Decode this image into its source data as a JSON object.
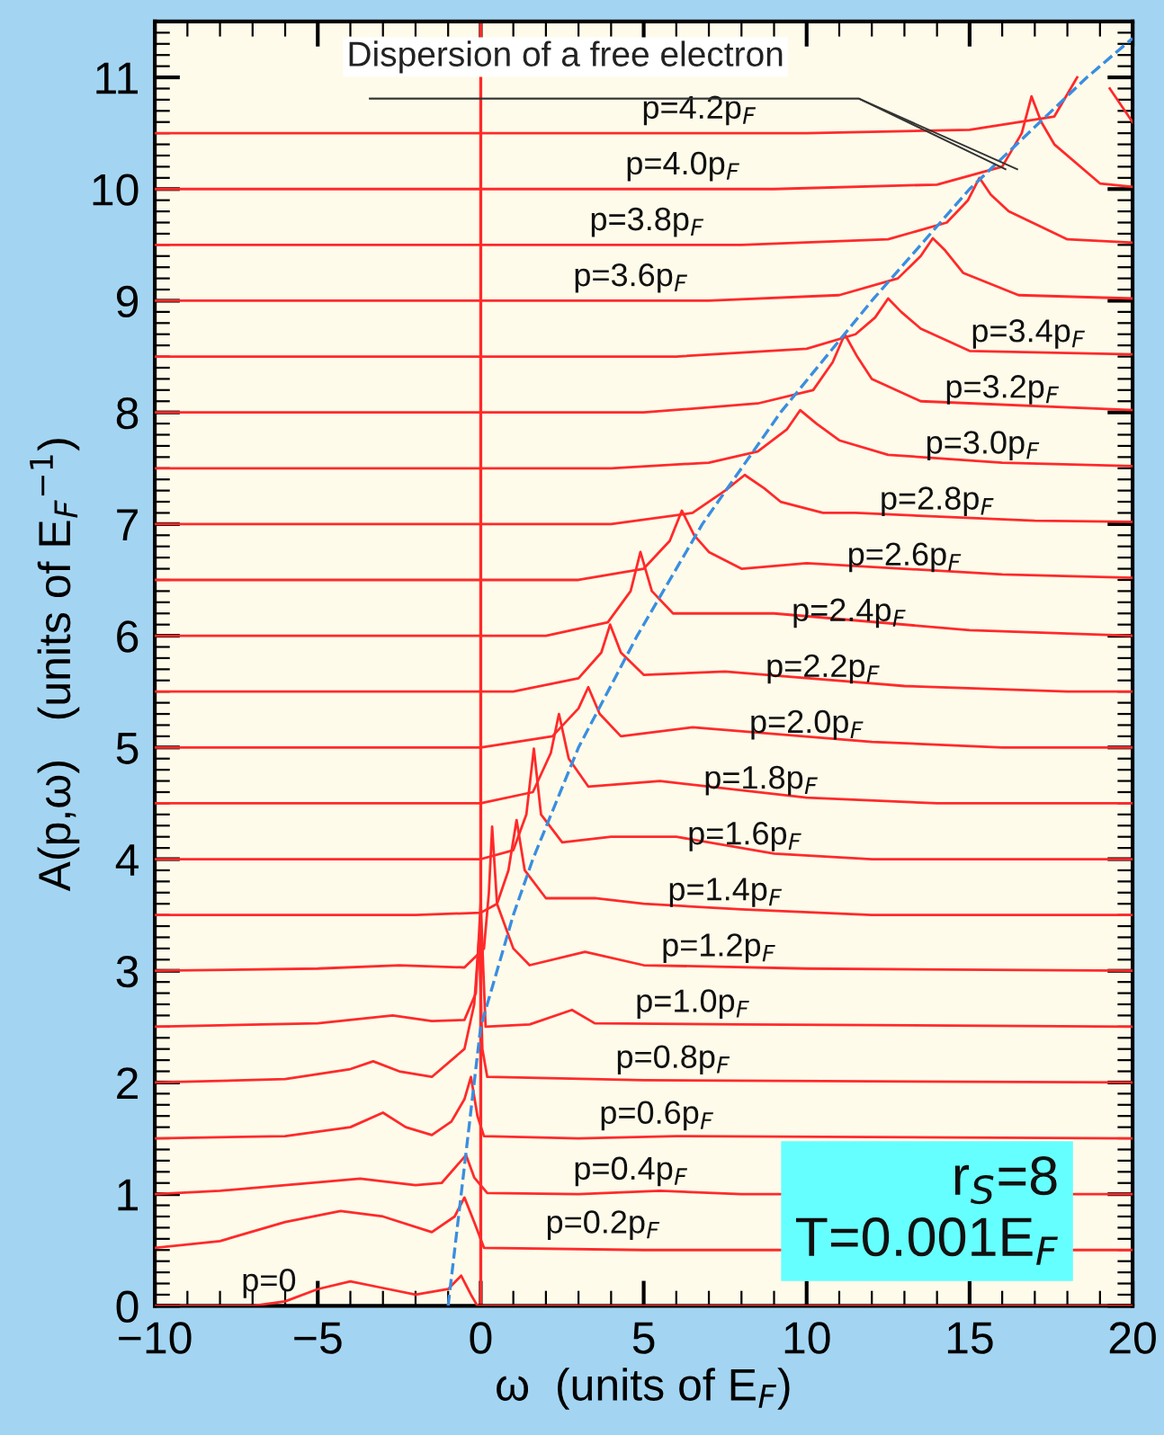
{
  "chart_data": {
    "type": "line",
    "xlabel": "ω  (units of E$_{F}$)",
    "ylabel": "A(p,ω)   (units of E$_{F}$$^{−1}$)",
    "xlim": [
      -10,
      20
    ],
    "ylim": [
      0,
      11.5
    ],
    "xticks": [
      -10,
      -5,
      0,
      5,
      10,
      15,
      20
    ],
    "yticks": [
      0,
      1,
      2,
      3,
      4,
      5,
      6,
      7,
      8,
      9,
      10,
      11
    ],
    "grid": false,
    "legend": false,
    "marker": "none",
    "line_style": "solid",
    "ref_lines": [
      {
        "axis": "x",
        "value": 0,
        "color": "#ff2a2a"
      }
    ],
    "annotations": [
      "Dispersion of a free electron",
      "r$_{S}$=8\nT=0.001E$_{F}$"
    ],
    "series": [
      {
        "name": "p=0",
        "color": "#ff2a2a",
        "x": [
          -10,
          -7,
          -6,
          -5,
          -4,
          -3,
          -2,
          -1,
          -0.6,
          -0.3,
          -0.1,
          20
        ],
        "values": [
          0,
          0,
          0.04,
          0.15,
          0.22,
          0.16,
          0.1,
          0.15,
          0.27,
          0.1,
          0,
          0
        ]
      },
      {
        "name": "p=0.2p$_{F}$",
        "color": "#ff2a2a",
        "x": [
          -10,
          -8,
          -6,
          -4.3,
          -3,
          -1.5,
          -0.8,
          -0.5,
          -0.2,
          0.1,
          5,
          20
        ],
        "values": [
          0.52,
          0.58,
          0.75,
          0.85,
          0.8,
          0.66,
          0.8,
          0.97,
          0.75,
          0.52,
          0.5,
          0.5
        ]
      },
      {
        "name": "p=0.4p$_{F}$",
        "color": "#ff2a2a",
        "x": [
          -10,
          -8,
          -6,
          -3.7,
          -2,
          -1.2,
          -0.6,
          -0.45,
          -0.2,
          0.2,
          3,
          5.5,
          8,
          20
        ],
        "values": [
          1.0,
          1.03,
          1.08,
          1.14,
          1.08,
          1.1,
          1.3,
          1.35,
          1.15,
          1.01,
          1.0,
          1.03,
          1.0,
          1.0
        ]
      },
      {
        "name": "p=0.6p$_{F}$",
        "color": "#ff2a2a",
        "x": [
          -10,
          -6,
          -4,
          -3,
          -2.3,
          -1.5,
          -0.9,
          -0.5,
          -0.3,
          -0.1,
          0.1,
          3,
          6,
          20
        ],
        "values": [
          1.5,
          1.52,
          1.6,
          1.73,
          1.6,
          1.53,
          1.65,
          1.85,
          2.05,
          1.7,
          1.52,
          1.5,
          1.52,
          1.5
        ]
      },
      {
        "name": "p=0.8p$_{F}$",
        "color": "#ff2a2a",
        "x": [
          -10,
          -6,
          -4,
          -3.3,
          -2.5,
          -1.5,
          -0.5,
          -0.2,
          -0.05,
          0.05,
          0.2,
          5,
          20
        ],
        "values": [
          2.0,
          2.03,
          2.12,
          2.19,
          2.1,
          2.05,
          2.3,
          2.7,
          3.3,
          2.3,
          2.05,
          2.02,
          2.0
        ]
      },
      {
        "name": "p=1.0p$_{F}$",
        "color": "#ff2a2a",
        "x": [
          -10,
          -5,
          -2.7,
          -1.5,
          -0.5,
          -0.15,
          0.0,
          0.08,
          0.15,
          1.5,
          2.8,
          3.5,
          8,
          20
        ],
        "values": [
          2.5,
          2.53,
          2.6,
          2.55,
          2.56,
          2.8,
          3.62,
          3.0,
          2.5,
          2.52,
          2.65,
          2.53,
          2.52,
          2.5
        ]
      },
      {
        "name": "p=1.2p$_{F}$",
        "color": "#ff2a2a",
        "x": [
          -10,
          -5,
          -2.5,
          -0.5,
          0.1,
          0.25,
          0.35,
          0.5,
          1.0,
          1.5,
          3.2,
          5,
          10,
          20
        ],
        "values": [
          3.0,
          3.02,
          3.05,
          3.03,
          3.2,
          3.7,
          4.29,
          3.6,
          3.2,
          3.05,
          3.17,
          3.05,
          3.02,
          3.0
        ]
      },
      {
        "name": "p=1.4p$_{F}$",
        "color": "#ff2a2a",
        "x": [
          -10,
          -2,
          0,
          0.5,
          0.85,
          1.1,
          1.35,
          2.0,
          3.5,
          5,
          8,
          12,
          20
        ],
        "values": [
          3.5,
          3.5,
          3.52,
          3.6,
          3.9,
          4.35,
          3.9,
          3.65,
          3.65,
          3.6,
          3.55,
          3.5,
          3.5
        ]
      },
      {
        "name": "p=1.6p$_{F}$",
        "color": "#ff2a2a",
        "x": [
          -10,
          0,
          1.0,
          1.4,
          1.63,
          1.85,
          2.5,
          4,
          6,
          9,
          12,
          20
        ],
        "values": [
          4.0,
          4.0,
          4.08,
          4.4,
          4.99,
          4.4,
          4.15,
          4.2,
          4.2,
          4.05,
          4.0,
          4.0
        ]
      },
      {
        "name": "p=1.8p$_{F}$",
        "color": "#ff2a2a",
        "x": [
          -10,
          0,
          1.6,
          2.15,
          2.4,
          2.7,
          3.3,
          5.5,
          10,
          14,
          20
        ],
        "values": [
          4.5,
          4.5,
          4.6,
          4.95,
          5.3,
          4.9,
          4.65,
          4.7,
          4.55,
          4.5,
          4.5
        ]
      },
      {
        "name": "p=2.0p$_{F}$",
        "color": "#ff2a2a",
        "x": [
          -10,
          0,
          2.2,
          3.0,
          3.3,
          3.65,
          4.3,
          6.5,
          12,
          16,
          20
        ],
        "values": [
          5.0,
          5.0,
          5.1,
          5.35,
          5.54,
          5.3,
          5.1,
          5.18,
          5.05,
          5.0,
          5.0
        ]
      },
      {
        "name": "p=2.2p$_{F}$",
        "color": "#ff2a2a",
        "x": [
          -10,
          1,
          3.0,
          3.7,
          3.97,
          4.3,
          5.0,
          7.5,
          13,
          18,
          20
        ],
        "values": [
          5.5,
          5.5,
          5.62,
          5.85,
          6.1,
          5.85,
          5.65,
          5.68,
          5.55,
          5.5,
          5.5
        ]
      },
      {
        "name": "p=2.4p$_{F}$",
        "color": "#ff2a2a",
        "x": [
          -10,
          2,
          3.9,
          4.6,
          4.9,
          5.25,
          5.9,
          9,
          15,
          20
        ],
        "values": [
          6.0,
          6.0,
          6.12,
          6.4,
          6.75,
          6.4,
          6.2,
          6.2,
          6.05,
          6.0
        ]
      },
      {
        "name": "p=2.6p$_{F}$",
        "color": "#ff2a2a",
        "x": [
          -10,
          3,
          5.0,
          5.8,
          6.17,
          6.55,
          7.0,
          8,
          10,
          16,
          20
        ],
        "values": [
          6.5,
          6.5,
          6.6,
          6.85,
          7.12,
          6.9,
          6.75,
          6.6,
          6.65,
          6.55,
          6.52
        ]
      },
      {
        "name": "p=2.8p$_{F}$",
        "color": "#ff2a2a",
        "x": [
          -10,
          4,
          6.5,
          7.5,
          8.1,
          8.7,
          9.2,
          10.5,
          11.5,
          17,
          20
        ],
        "values": [
          7.0,
          7.0,
          7.1,
          7.3,
          7.44,
          7.32,
          7.2,
          7.1,
          7.1,
          7.03,
          7.02
        ]
      },
      {
        "name": "p=3.0p$_{F}$",
        "color": "#ff2a2a",
        "x": [
          -10,
          4,
          7,
          8.5,
          9.4,
          9.8,
          10.3,
          11,
          12.5,
          16,
          20
        ],
        "values": [
          7.5,
          7.5,
          7.55,
          7.65,
          7.85,
          8.02,
          7.9,
          7.75,
          7.62,
          7.55,
          7.52
        ]
      },
      {
        "name": "p=3.2p$_{F}$",
        "color": "#ff2a2a",
        "x": [
          -10,
          5,
          8.5,
          10.2,
          10.8,
          11.17,
          11.55,
          12,
          13.5,
          20
        ],
        "values": [
          8.0,
          8.0,
          8.08,
          8.2,
          8.45,
          8.7,
          8.5,
          8.3,
          8.1,
          8.02
        ]
      },
      {
        "name": "p=3.4p$_{F}$",
        "color": "#ff2a2a",
        "x": [
          -10,
          6,
          10,
          11.5,
          12.1,
          12.5,
          12.9,
          13.5,
          15,
          20
        ],
        "values": [
          8.5,
          8.5,
          8.57,
          8.7,
          8.85,
          9.02,
          8.9,
          8.75,
          8.55,
          8.52
        ]
      },
      {
        "name": "p=3.6p$_{F}$",
        "color": "#ff2a2a",
        "x": [
          -10,
          7,
          11,
          12.8,
          13.5,
          13.87,
          14.25,
          14.8,
          16.5,
          20
        ],
        "values": [
          9.0,
          9.0,
          9.05,
          9.2,
          9.4,
          9.56,
          9.45,
          9.25,
          9.05,
          9.02
        ]
      },
      {
        "name": "p=3.8p$_{F}$",
        "color": "#ff2a2a",
        "x": [
          -10,
          8,
          12.5,
          14.3,
          14.95,
          15.3,
          15.65,
          16.2,
          18,
          20
        ],
        "values": [
          9.5,
          9.5,
          9.55,
          9.7,
          9.9,
          10.1,
          9.95,
          9.8,
          9.55,
          9.52
        ]
      },
      {
        "name": "p=4.0p$_{F}$",
        "color": "#ff2a2a",
        "x": [
          -10,
          9,
          14,
          16,
          16.6,
          16.9,
          17.2,
          17.6,
          19,
          20
        ],
        "values": [
          10.0,
          10.0,
          10.04,
          10.2,
          10.5,
          10.83,
          10.6,
          10.4,
          10.05,
          10.02
        ]
      },
      {
        "name": "p=4.2p$_{F}$",
        "color": "#ff2a2a",
        "x": [
          -10,
          10,
          15,
          17.6,
          18.3,
          18.55,
          18.9,
          19.3,
          20
        ],
        "values": [
          10.5,
          10.5,
          10.53,
          10.65,
          11.0,
          null,
          null,
          10.9,
          10.6
        ]
      },
      {
        "color": "#3a8ee0",
        "line_style": "dashed",
        "x": [
          -1,
          -0.6,
          -0.2,
          0,
          1.0,
          1.6,
          3.0,
          4.8,
          6.8,
          9.2,
          12.0,
          15.0,
          18.6,
          20
        ],
        "values": [
          0,
          1,
          2,
          2.5,
          3.5,
          4,
          5,
          6,
          7,
          8,
          9,
          10,
          11,
          11.35
        ]
      }
    ]
  }
}
